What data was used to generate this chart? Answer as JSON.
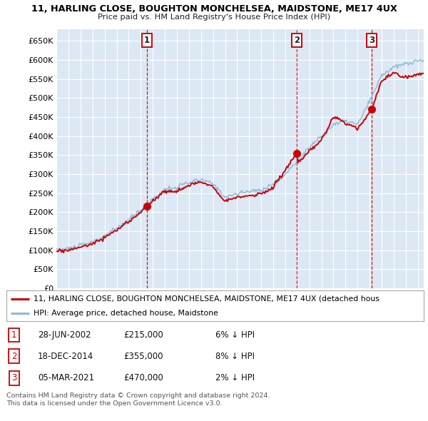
{
  "title_line1": "11, HARLING CLOSE, BOUGHTON MONCHELSEA, MAIDSTONE, ME17 4UX",
  "title_line2": "Price paid vs. HM Land Registry's House Price Index (HPI)",
  "ylim": [
    0,
    680000
  ],
  "yticks": [
    0,
    50000,
    100000,
    150000,
    200000,
    250000,
    300000,
    350000,
    400000,
    450000,
    500000,
    550000,
    600000,
    650000
  ],
  "bg_color": "#dde8f5",
  "grid_color": "#ffffff",
  "sale_color": "#cc0000",
  "hpi_color": "#8bbcdc",
  "sale_points": [
    {
      "date": 2002.49,
      "price": 215000,
      "label": "1"
    },
    {
      "date": 2014.96,
      "price": 355000,
      "label": "2"
    },
    {
      "date": 2021.17,
      "price": 470000,
      "label": "3"
    }
  ],
  "legend_sale_label": "11, HARLING CLOSE, BOUGHTON MONCHELSEA, MAIDSTONE, ME17 4UX (detached hous",
  "legend_hpi_label": "HPI: Average price, detached house, Maidstone",
  "table_rows": [
    {
      "num": "1",
      "date": "28-JUN-2002",
      "price": "£215,000",
      "pct": "6% ↓ HPI"
    },
    {
      "num": "2",
      "date": "18-DEC-2014",
      "price": "£355,000",
      "pct": "8% ↓ HPI"
    },
    {
      "num": "3",
      "date": "05-MAR-2021",
      "price": "£470,000",
      "pct": "2% ↓ HPI"
    }
  ],
  "footer_line1": "Contains HM Land Registry data © Crown copyright and database right 2024.",
  "footer_line2": "This data is licensed under the Open Government Licence v3.0.",
  "xstart": 1995.0,
  "xend": 2025.5,
  "hpi_knots_t": [
    1995,
    1996,
    1997,
    1998,
    1999,
    2000,
    2001,
    2002,
    2003,
    2004,
    2005,
    2006,
    2007,
    2008,
    2009,
    2010,
    2011,
    2012,
    2013,
    2014,
    2015,
    2016,
    2017,
    2018,
    2019,
    2020,
    2021,
    2022,
    2023,
    2024,
    2025.5
  ],
  "hpi_knots_v": [
    100000,
    105000,
    112000,
    122000,
    138000,
    158000,
    180000,
    205000,
    235000,
    260000,
    265000,
    278000,
    285000,
    275000,
    240000,
    248000,
    255000,
    258000,
    275000,
    300000,
    335000,
    370000,
    400000,
    430000,
    440000,
    430000,
    490000,
    560000,
    580000,
    590000,
    600000
  ],
  "sale_knots_t": [
    1995,
    1996,
    1997,
    1998,
    1999,
    2000,
    2001,
    2002.49,
    2003,
    2004,
    2005,
    2006,
    2007,
    2008,
    2009,
    2010,
    2011,
    2012,
    2013,
    2014.96,
    2015,
    2016,
    2017,
    2018,
    2019,
    2020,
    2021.17,
    2022,
    2023,
    2024,
    2025.5
  ],
  "sale_knots_v": [
    97000,
    101000,
    108000,
    118000,
    134000,
    153000,
    175000,
    215000,
    230000,
    255000,
    255000,
    270000,
    280000,
    268000,
    230000,
    238000,
    244000,
    248000,
    265000,
    355000,
    325000,
    360000,
    388000,
    450000,
    435000,
    420000,
    470000,
    545000,
    565000,
    555000,
    565000
  ]
}
